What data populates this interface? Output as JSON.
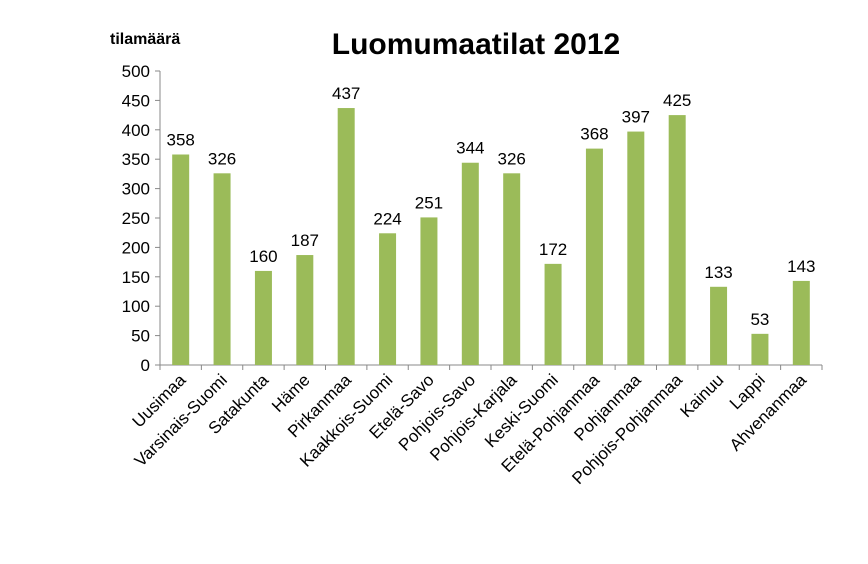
{
  "chart_data": {
    "type": "bar",
    "title": "Luomumaatilat 2012",
    "ylabel": "tilamäärä",
    "xlabel": "",
    "ylim": [
      0,
      500
    ],
    "ytick_step": 50,
    "yticks": [
      "0",
      "50",
      "100",
      "150",
      "200",
      "250",
      "300",
      "350",
      "400",
      "450",
      "500"
    ],
    "grid": false,
    "legend": "none",
    "bar_color": "#9bbb59",
    "categories": [
      "Uusimaa",
      "Varsinais-Suomi",
      "Satakunta",
      "Häme",
      "Pirkanmaa",
      "Kaakkois-Suomi",
      "Etelä-Savo",
      "Pohjois-Savo",
      "Pohjois-Karjala",
      "Keski-Suomi",
      "Etelä-Pohjanmaa",
      "Pohjanmaa",
      "Pohjois-Pohjanmaa",
      "Kainuu",
      "Lappi",
      "Ahvenanmaa"
    ],
    "values": [
      358,
      326,
      160,
      187,
      437,
      224,
      251,
      344,
      326,
      172,
      368,
      397,
      425,
      133,
      53,
      143
    ],
    "data_labels": [
      "358",
      "326",
      "160",
      "187",
      "437",
      "224",
      "251",
      "344",
      "326",
      "172",
      "368",
      "397",
      "425",
      "133",
      "53",
      "143"
    ]
  }
}
